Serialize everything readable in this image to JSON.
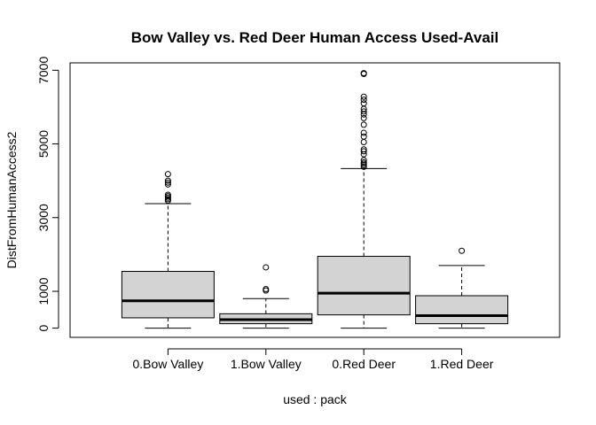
{
  "chart_data": {
    "type": "box",
    "title": "Bow Valley vs. Red Deer Human Access Used-Avail",
    "xlabel": "used : pack",
    "ylabel": "DistFromHumanAccess2",
    "ylim": [
      -250,
      7200
    ],
    "yticks": [
      0,
      1000,
      3000,
      5000,
      7000
    ],
    "categories": [
      "0.Bow Valley",
      "1.Bow Valley",
      "0.Red Deer",
      "1.Red Deer"
    ],
    "boxes": [
      {
        "min": 0,
        "q1": 280,
        "median": 740,
        "q3": 1540,
        "max": 3380,
        "outliers": [
          3460,
          3500,
          3540,
          3580,
          3620,
          3900,
          3950,
          4000,
          4180
        ]
      },
      {
        "min": 0,
        "q1": 120,
        "median": 230,
        "q3": 390,
        "max": 800,
        "outliers": [
          1020,
          1060,
          1650
        ]
      },
      {
        "min": 0,
        "q1": 360,
        "median": 950,
        "q3": 1950,
        "max": 4330,
        "outliers": [
          4380,
          4420,
          4460,
          4500,
          4560,
          4720,
          4800,
          4850,
          5050,
          5200,
          5300,
          5520,
          5700,
          5800,
          5880,
          5950,
          6100,
          6200,
          6280,
          6900,
          6920
        ]
      },
      {
        "min": 0,
        "q1": 120,
        "median": 340,
        "q3": 880,
        "max": 1700,
        "outliers": [
          2100
        ]
      }
    ],
    "box_color": "#d3d3d3",
    "grid": false
  }
}
